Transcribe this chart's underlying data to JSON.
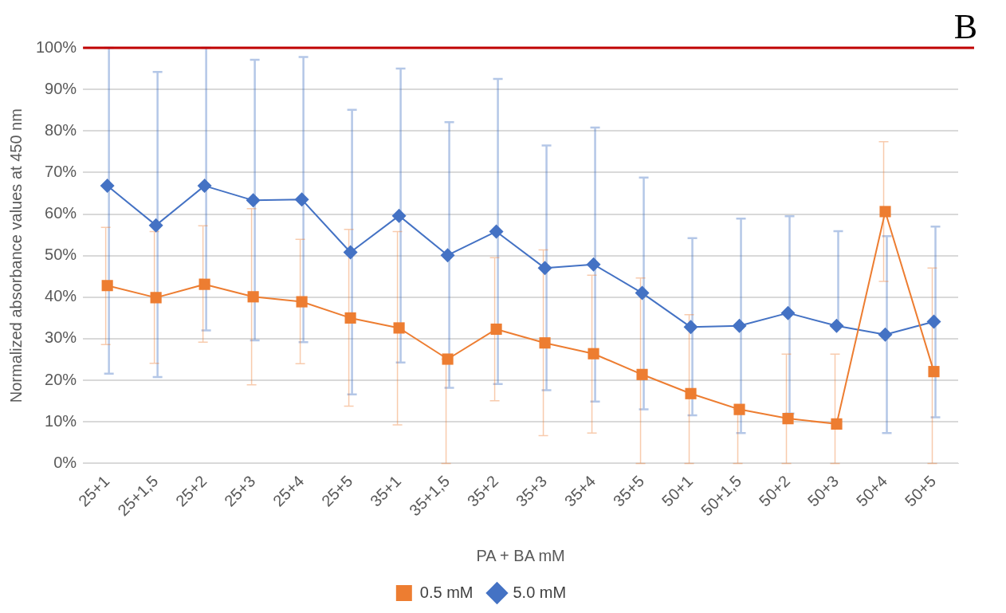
{
  "chart_data": {
    "type": "line",
    "xlabel": "PA + BA mM",
    "ylabel": "Normalized absorbance values at 450 nm",
    "annotations": [
      "B"
    ],
    "categories": [
      "25+1",
      "25+1,5",
      "25+2",
      "25+3",
      "25+4",
      "25+5",
      "35+1",
      "35+1,5",
      "35+2",
      "35+3",
      "35+4",
      "35+5",
      "50+1",
      "50+1,5",
      "50+2",
      "50+3",
      "50+4",
      "50+5"
    ],
    "series": [
      {
        "name": "0.5 mM",
        "color": "#ed7d31",
        "marker": "square",
        "values": [
          42.8,
          39.9,
          43.1,
          40.1,
          38.9,
          35.0,
          32.6,
          25.1,
          32.3,
          29.0,
          26.4,
          21.4,
          16.8,
          13.0,
          10.8,
          9.5,
          60.6,
          22.1
        ],
        "errors": [
          [
            28.6,
            56.8
          ],
          [
            24.1,
            55.8
          ],
          [
            29.2,
            57.2
          ],
          [
            18.9,
            61.3
          ],
          [
            24,
            53.9
          ],
          [
            13.8,
            56.3
          ],
          [
            9.3,
            55.8
          ],
          [
            0,
            25.1
          ],
          [
            15.1,
            49.5
          ],
          [
            6.7,
            51.4
          ],
          [
            7.3,
            45.3
          ],
          [
            0,
            44.6
          ],
          [
            0,
            35.8
          ],
          [
            0,
            13.0
          ],
          [
            0,
            26.3
          ],
          [
            0,
            26.3
          ],
          [
            43.8,
            77.4
          ],
          [
            0,
            47
          ]
        ]
      },
      {
        "name": "5.0 mM",
        "color": "#4472c4",
        "marker": "diamond",
        "values": [
          66.8,
          57.3,
          66.8,
          63.3,
          63.5,
          50.8,
          59.6,
          50.1,
          55.8,
          47.0,
          47.9,
          41.0,
          32.8,
          33.1,
          36.2,
          33.1,
          31.0,
          34.1
        ],
        "errors": [
          [
            21.6,
            100
          ],
          [
            20.8,
            94.2
          ],
          [
            32,
            100
          ],
          [
            29.6,
            97.1
          ],
          [
            29.2,
            97.8
          ],
          [
            16.6,
            85.1
          ],
          [
            24.3,
            95
          ],
          [
            18.2,
            82.1
          ],
          [
            19.1,
            92.5
          ],
          [
            17.6,
            76.5
          ],
          [
            14.9,
            80.8
          ],
          [
            13,
            68.8
          ],
          [
            11.6,
            54.2
          ],
          [
            7.3,
            58.9
          ],
          [
            12,
            59.5
          ],
          [
            33.1,
            55.9
          ],
          [
            7.3,
            54.7
          ],
          [
            11.1,
            57
          ]
        ]
      }
    ],
    "ylim": [
      0,
      100
    ],
    "yticks": [
      {
        "value": 0,
        "label": "0%"
      },
      {
        "value": 10,
        "label": "10%"
      },
      {
        "value": 20,
        "label": "20%"
      },
      {
        "value": 30,
        "label": "30%"
      },
      {
        "value": 40,
        "label": "40%"
      },
      {
        "value": 50,
        "label": "50%"
      },
      {
        "value": 60,
        "label": "60%"
      },
      {
        "value": 70,
        "label": "70%"
      },
      {
        "value": 80,
        "label": "80%"
      },
      {
        "value": 90,
        "label": "90%"
      },
      {
        "value": 100,
        "label": "100%"
      }
    ],
    "ref_lines": [
      {
        "axis": "y",
        "value": 100,
        "color": "#c00000"
      }
    ],
    "grid": "y",
    "legend": "bottom",
    "line_style": "solid"
  }
}
